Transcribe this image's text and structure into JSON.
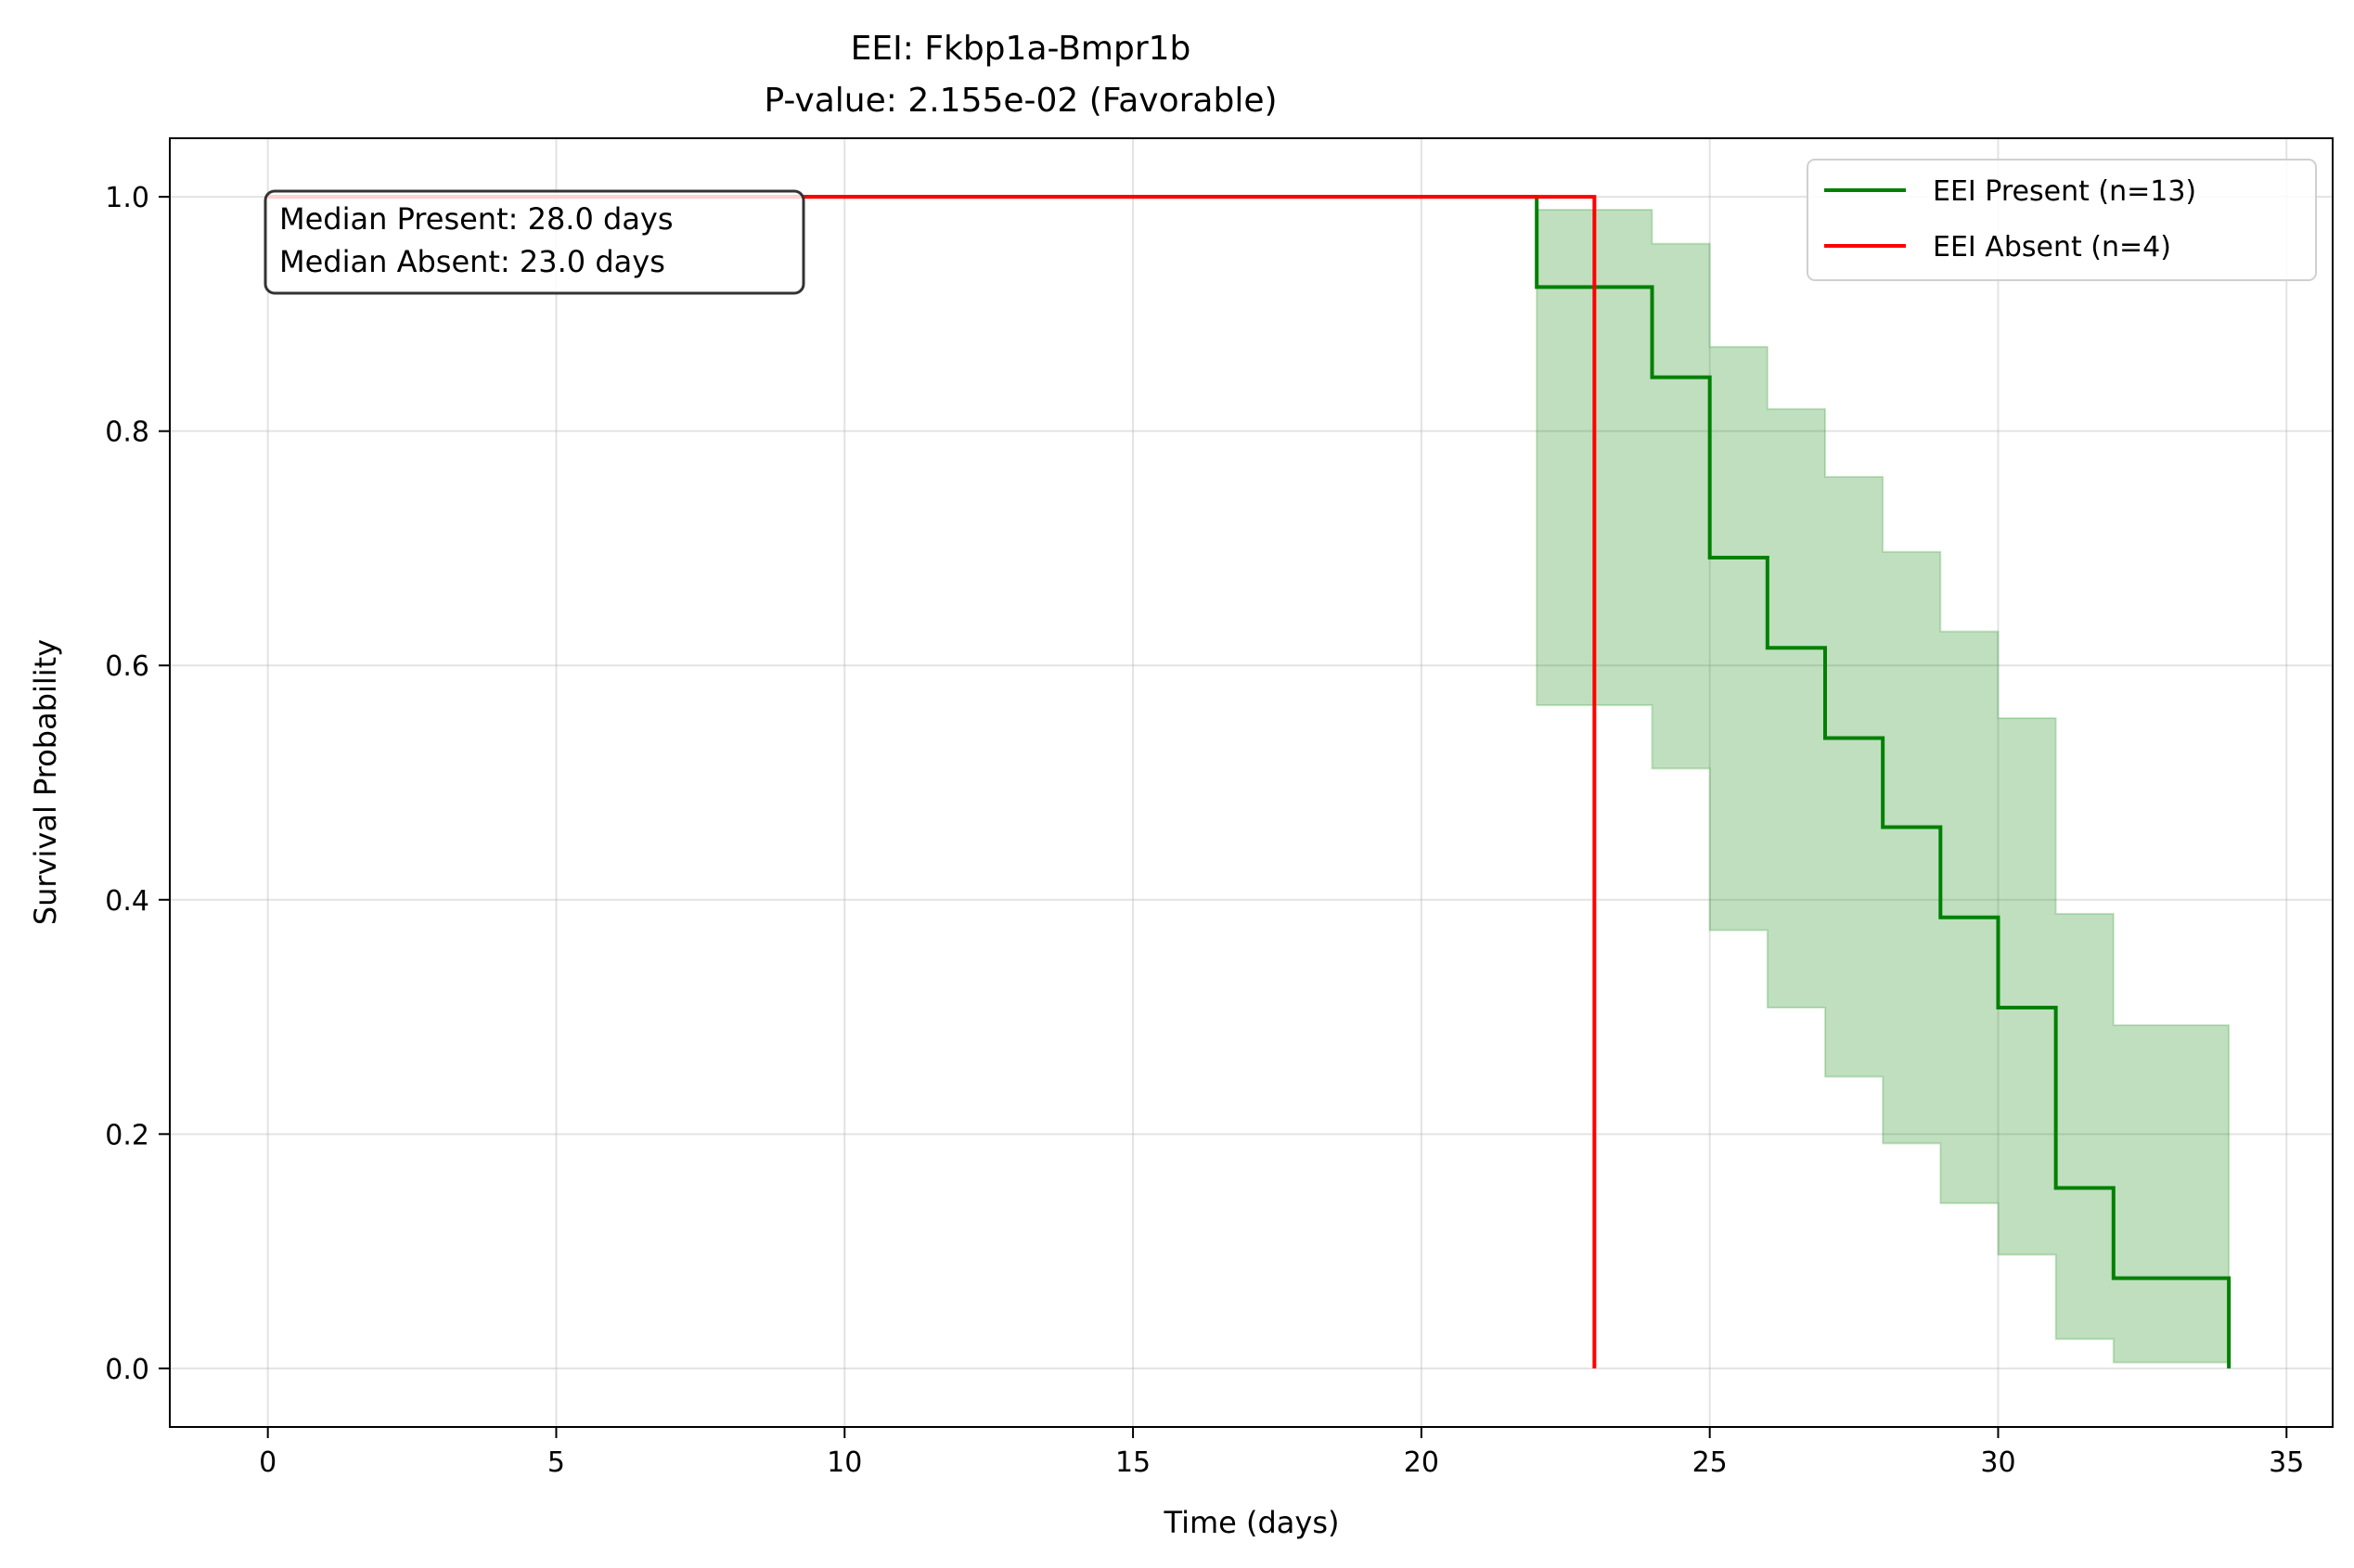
{
  "chart_data": {
    "type": "line",
    "subtype": "kaplan-meier step",
    "title": "EEI: Fkbp1a-Bmpr1b",
    "subtitle": "P-value: 2.155e-02 (Favorable)",
    "xlabel": "Time (days)",
    "ylabel": "Survival Probability",
    "xlim": [
      -1.7,
      35.8
    ],
    "ylim": [
      -0.05,
      1.05
    ],
    "x_ticks": [
      0,
      5,
      10,
      15,
      20,
      25,
      30,
      35
    ],
    "y_ticks": [
      0.0,
      0.2,
      0.4,
      0.6,
      0.8,
      1.0
    ],
    "x_tick_labels": [
      "0",
      "5",
      "10",
      "15",
      "20",
      "25",
      "30",
      "35"
    ],
    "y_tick_labels": [
      "0.0",
      "0.2",
      "0.4",
      "0.6",
      "0.8",
      "1.0"
    ],
    "grid": true,
    "legend_position": "top-right",
    "series": [
      {
        "name": "EEI Present (n=13)",
        "color": "#008000",
        "steps": [
          {
            "x": 0,
            "y": 1.0
          },
          {
            "x": 22,
            "y": 0.923
          },
          {
            "x": 24,
            "y": 0.846
          },
          {
            "x": 25,
            "y": 0.692
          },
          {
            "x": 26,
            "y": 0.615
          },
          {
            "x": 27,
            "y": 0.538
          },
          {
            "x": 28,
            "y": 0.462
          },
          {
            "x": 29,
            "y": 0.385
          },
          {
            "x": 30,
            "y": 0.308
          },
          {
            "x": 31,
            "y": 0.154
          },
          {
            "x": 32,
            "y": 0.077
          },
          {
            "x": 34,
            "y": 0.0
          }
        ],
        "ci": [
          {
            "x": 22,
            "lower": 0.566,
            "upper": 0.989
          },
          {
            "x": 24,
            "lower": 0.512,
            "upper": 0.96
          },
          {
            "x": 25,
            "lower": 0.374,
            "upper": 0.872
          },
          {
            "x": 26,
            "lower": 0.308,
            "upper": 0.819
          },
          {
            "x": 27,
            "lower": 0.249,
            "upper": 0.761
          },
          {
            "x": 28,
            "lower": 0.192,
            "upper": 0.697
          },
          {
            "x": 29,
            "lower": 0.141,
            "upper": 0.629
          },
          {
            "x": 30,
            "lower": 0.097,
            "upper": 0.555
          },
          {
            "x": 31,
            "lower": 0.025,
            "upper": 0.388
          },
          {
            "x": 32,
            "lower": 0.005,
            "upper": 0.293
          },
          {
            "x": 34,
            "lower": 0.005,
            "upper": 0.293
          }
        ]
      },
      {
        "name": "EEI Absent (n=4)",
        "color": "#ff0000",
        "steps": [
          {
            "x": 0,
            "y": 1.0
          },
          {
            "x": 23,
            "y": 0.0
          }
        ]
      }
    ],
    "annotations": [
      "Median Present: 28.0 days",
      "Median Absent: 23.0 days"
    ]
  }
}
